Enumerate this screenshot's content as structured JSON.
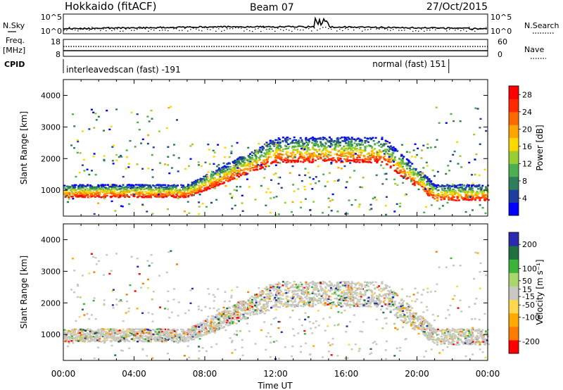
{
  "header": {
    "station": "Hokkaido (fitACF)",
    "beam": "Beam 07",
    "date": "27/Oct/2015"
  },
  "summary": {
    "nsky_label": "N.Sky",
    "nsky_ticks": [
      "10^5",
      "10^0"
    ],
    "nsearch_label": "N.Search",
    "nsearch_ticks": [
      "10^5",
      "10^0"
    ],
    "freq_label": "Freq.",
    "freq_unit": "[MHz]",
    "freq_ticks": [
      "18",
      "8"
    ],
    "nave_label": "Nave",
    "nave_ticks": [
      "60",
      "0"
    ],
    "cpid_label": "CPID",
    "cpid_segments": [
      {
        "label": "interleavedscan (fast) -191",
        "start": 0,
        "end": 21.8
      },
      {
        "label": "normal (fast) 151",
        "start": 21.8,
        "end": 24
      }
    ]
  },
  "colors": {
    "power": [
      "#0000ff",
      "#1f3f9f",
      "#2e7d5b",
      "#4caf50",
      "#9acd32",
      "#ffd700",
      "#ffa500",
      "#ff6a00",
      "#ff2a00",
      "#ff0000"
    ],
    "velocity": [
      "#ff0000",
      "#ff7a00",
      "#ffaa00",
      "#ffd84d",
      "#c8c8c0",
      "#a8d66a",
      "#3cb43c",
      "#1f6f3f",
      "#2a2ab0"
    ]
  },
  "chart_data": [
    {
      "type": "heatmap",
      "name": "power-panel",
      "ylabel": "Slant Range [km]",
      "xlim": [
        0,
        24
      ],
      "ylim": [
        180,
        4500
      ],
      "yticks": [
        1000,
        2000,
        3000,
        4000
      ],
      "colorbar_label": "Power [dB]",
      "colorbar_ticks": [
        "4",
        "8",
        "12",
        "16",
        "20",
        "24",
        "28"
      ],
      "colorbar_range": [
        0,
        30
      ]
    },
    {
      "type": "heatmap",
      "name": "velocity-panel",
      "xlabel": "Time UT",
      "xticks": [
        "00:00",
        "04:00",
        "08:00",
        "12:00",
        "16:00",
        "20:00",
        "00:00"
      ],
      "ylabel": "Slant Range [km]",
      "xlim": [
        0,
        24
      ],
      "ylim": [
        180,
        4500
      ],
      "yticks": [
        1000,
        2000,
        3000,
        4000
      ],
      "colorbar_label": "Velocity [m s⁻¹]",
      "colorbar_ticks": [
        "-200",
        "-100",
        "-50",
        "-15",
        "15",
        "50",
        "100",
        "200"
      ],
      "colorbar_range": [
        -250,
        250
      ]
    }
  ]
}
